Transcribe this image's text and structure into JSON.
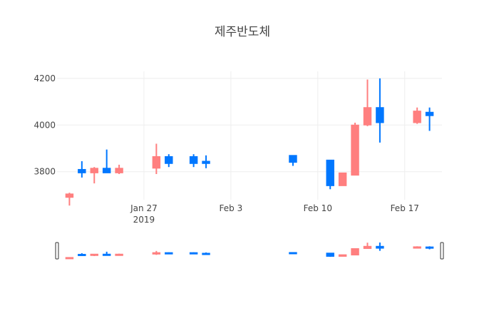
{
  "chart_data": {
    "type": "candlestick",
    "title": "제주반도체",
    "xlabel": "",
    "ylabel": "",
    "ylim": [
      3680,
      4230
    ],
    "y_ticks": [
      3800,
      4000,
      4200
    ],
    "x_ticks": [
      {
        "date": "2019-01-27",
        "label": "Jan 27",
        "sublabel": "2019"
      },
      {
        "date": "2019-02-03",
        "label": "Feb 3",
        "sublabel": ""
      },
      {
        "date": "2019-02-10",
        "label": "Feb 10",
        "sublabel": ""
      },
      {
        "date": "2019-02-17",
        "label": "Feb 17",
        "sublabel": ""
      }
    ],
    "x_range": [
      "2019-01-20",
      "2019-02-20"
    ],
    "grid": true,
    "rangeslider": true,
    "colors": {
      "increasing": "#ff7f7f",
      "decreasing": "#0077ff"
    },
    "candles": [
      {
        "date": "2019-01-21",
        "open": 3690,
        "high": 3710,
        "low": 3655,
        "close": 3705
      },
      {
        "date": "2019-01-22",
        "open": 3810,
        "high": 3845,
        "low": 3775,
        "close": 3795
      },
      {
        "date": "2019-01-23",
        "open": 3795,
        "high": 3820,
        "low": 3750,
        "close": 3815
      },
      {
        "date": "2019-01-24",
        "open": 3815,
        "high": 3895,
        "low": 3795,
        "close": 3795
      },
      {
        "date": "2019-01-25",
        "open": 3795,
        "high": 3830,
        "low": 3790,
        "close": 3815
      },
      {
        "date": "2019-01-28",
        "open": 3815,
        "high": 3920,
        "low": 3790,
        "close": 3865
      },
      {
        "date": "2019-01-29",
        "open": 3865,
        "high": 3875,
        "low": 3820,
        "close": 3835
      },
      {
        "date": "2019-01-31",
        "open": 3865,
        "high": 3875,
        "low": 3820,
        "close": 3835
      },
      {
        "date": "2019-02-01",
        "open": 3845,
        "high": 3870,
        "low": 3815,
        "close": 3835
      },
      {
        "date": "2019-02-08",
        "open": 3870,
        "high": 3870,
        "low": 3825,
        "close": 3840
      },
      {
        "date": "2019-02-11",
        "open": 3850,
        "high": 3850,
        "low": 3725,
        "close": 3740
      },
      {
        "date": "2019-02-12",
        "open": 3740,
        "high": 3795,
        "low": 3740,
        "close": 3795
      },
      {
        "date": "2019-02-13",
        "open": 3785,
        "high": 4010,
        "low": 3785,
        "close": 4000
      },
      {
        "date": "2019-02-14",
        "open": 4000,
        "high": 4195,
        "low": 3995,
        "close": 4075
      },
      {
        "date": "2019-02-15",
        "open": 4075,
        "high": 4200,
        "low": 3925,
        "close": 4010
      },
      {
        "date": "2019-02-18",
        "open": 4010,
        "high": 4075,
        "low": 4005,
        "close": 4060
      },
      {
        "date": "2019-02-19",
        "open": 4055,
        "high": 4075,
        "low": 3975,
        "close": 4040
      }
    ]
  }
}
